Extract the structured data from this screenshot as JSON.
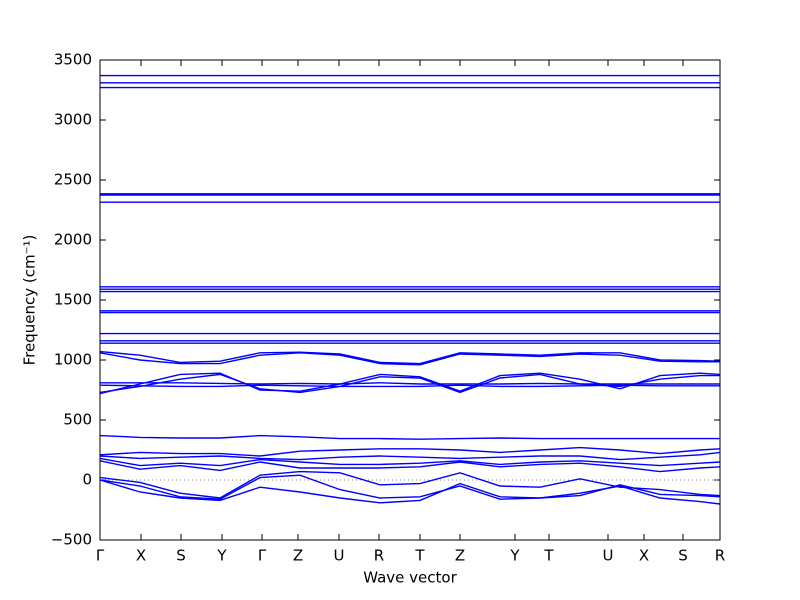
{
  "chart_data": {
    "type": "line",
    "xlabel": "Wave vector",
    "ylabel": "Frequency (cm⁻¹)",
    "color": "#0000ff",
    "x": [
      0,
      0.4,
      0.8,
      1.2,
      1.6,
      2.0,
      2.4,
      2.8,
      3.2,
      3.6,
      4.0,
      4.4,
      4.8,
      5.2,
      5.6,
      6.0,
      6.2
    ],
    "xlim": [
      0,
      6.2
    ],
    "xticks": [
      {
        "value": 0,
        "label": "Γ"
      },
      {
        "value": 0.41,
        "label": "X"
      },
      {
        "value": 0.81,
        "label": "S"
      },
      {
        "value": 1.22,
        "label": "Y"
      },
      {
        "value": 1.62,
        "label": "Γ"
      },
      {
        "value": 1.98,
        "label": "Z"
      },
      {
        "value": 2.39,
        "label": "U"
      },
      {
        "value": 2.79,
        "label": "R"
      },
      {
        "value": 3.2,
        "label": "T"
      },
      {
        "value": 3.6,
        "label": "Z"
      },
      {
        "value": 4.15,
        "label": "Y"
      },
      {
        "value": 4.49,
        "label": "T"
      },
      {
        "value": 5.08,
        "label": "U"
      },
      {
        "value": 5.44,
        "label": "X"
      },
      {
        "value": 5.83,
        "label": "S"
      },
      {
        "value": 6.2,
        "label": "R"
      }
    ],
    "ylim": [
      -500,
      3500
    ],
    "yticks": [
      {
        "value": -500,
        "label": "−500"
      },
      0,
      500,
      1000,
      1500,
      2000,
      2500,
      3000,
      3500
    ],
    "series": [
      {
        "values": [
          3370,
          3370,
          3370,
          3370,
          3370,
          3370,
          3370,
          3370,
          3370,
          3370,
          3370,
          3370,
          3370,
          3370,
          3370,
          3370,
          3370
        ]
      },
      {
        "values": [
          3310,
          3310,
          3310,
          3310,
          3310,
          3310,
          3310,
          3310,
          3310,
          3310,
          3310,
          3310,
          3310,
          3310,
          3310,
          3310,
          3310
        ]
      },
      {
        "values": [
          3270,
          3270,
          3270,
          3270,
          3270,
          3270,
          3270,
          3270,
          3270,
          3270,
          3270,
          3270,
          3270,
          3270,
          3270,
          3270,
          3270
        ]
      },
      {
        "values": [
          2385,
          2385,
          2385,
          2385,
          2385,
          2385,
          2385,
          2385,
          2385,
          2385,
          2385,
          2385,
          2385,
          2385,
          2385,
          2385,
          2385
        ]
      },
      {
        "values": [
          2375,
          2375,
          2375,
          2375,
          2375,
          2375,
          2375,
          2375,
          2375,
          2375,
          2375,
          2375,
          2375,
          2375,
          2375,
          2375,
          2375
        ]
      },
      {
        "values": [
          2315,
          2315,
          2315,
          2315,
          2315,
          2315,
          2315,
          2315,
          2315,
          2315,
          2315,
          2315,
          2315,
          2315,
          2315,
          2315,
          2315
        ]
      },
      {
        "values": [
          1610,
          1610,
          1610,
          1610,
          1610,
          1610,
          1610,
          1610,
          1610,
          1610,
          1610,
          1610,
          1610,
          1610,
          1610,
          1610,
          1610
        ]
      },
      {
        "values": [
          1590,
          1590,
          1590,
          1590,
          1590,
          1590,
          1590,
          1590,
          1590,
          1590,
          1590,
          1590,
          1590,
          1590,
          1590,
          1590,
          1590
        ]
      },
      {
        "values": [
          1570,
          1570,
          1570,
          1570,
          1570,
          1570,
          1570,
          1570,
          1570,
          1570,
          1570,
          1570,
          1570,
          1570,
          1570,
          1570,
          1570
        ]
      },
      {
        "values": [
          1410,
          1410,
          1410,
          1410,
          1410,
          1410,
          1410,
          1410,
          1410,
          1410,
          1410,
          1410,
          1410,
          1410,
          1410,
          1410,
          1410
        ]
      },
      {
        "values": [
          1395,
          1395,
          1395,
          1395,
          1395,
          1395,
          1395,
          1395,
          1395,
          1395,
          1395,
          1395,
          1395,
          1395,
          1395,
          1395,
          1395
        ]
      },
      {
        "values": [
          1220,
          1220,
          1220,
          1220,
          1220,
          1220,
          1220,
          1220,
          1220,
          1220,
          1220,
          1220,
          1220,
          1220,
          1220,
          1220,
          1220
        ]
      },
      {
        "values": [
          1160,
          1160,
          1160,
          1160,
          1160,
          1160,
          1160,
          1160,
          1160,
          1160,
          1160,
          1160,
          1160,
          1160,
          1160,
          1160,
          1160
        ]
      },
      {
        "values": [
          1140,
          1140,
          1140,
          1140,
          1140,
          1140,
          1140,
          1140,
          1140,
          1140,
          1140,
          1140,
          1140,
          1140,
          1140,
          1140,
          1140
        ]
      },
      {
        "values": [
          1070,
          1040,
          980,
          990,
          1060,
          1065,
          1050,
          980,
          970,
          1060,
          1050,
          1040,
          1060,
          1060,
          1000,
          995,
          990
        ]
      },
      {
        "values": [
          1060,
          1000,
          970,
          970,
          1040,
          1060,
          1040,
          970,
          960,
          1050,
          1040,
          1030,
          1050,
          1040,
          990,
          985,
          985
        ]
      },
      {
        "values": [
          720,
          800,
          880,
          890,
          750,
          740,
          800,
          880,
          860,
          740,
          870,
          890,
          840,
          760,
          870,
          890,
          880
        ]
      },
      {
        "values": [
          730,
          780,
          840,
          880,
          760,
          730,
          780,
          860,
          850,
          730,
          850,
          880,
          800,
          780,
          840,
          870,
          870
        ]
      },
      {
        "values": [
          810,
          810,
          810,
          805,
          800,
          805,
          800,
          810,
          800,
          800,
          800,
          805,
          800,
          800,
          800,
          800,
          800
        ]
      },
      {
        "values": [
          790,
          785,
          780,
          780,
          790,
          785,
          780,
          780,
          780,
          790,
          780,
          780,
          785,
          790,
          785,
          785,
          785
        ]
      },
      {
        "values": [
          370,
          355,
          350,
          350,
          370,
          360,
          345,
          345,
          340,
          345,
          350,
          345,
          345,
          345,
          345,
          345,
          345
        ]
      },
      {
        "values": [
          210,
          230,
          220,
          220,
          200,
          240,
          250,
          260,
          260,
          250,
          230,
          250,
          270,
          250,
          220,
          250,
          260
        ]
      },
      {
        "values": [
          200,
          180,
          190,
          200,
          180,
          170,
          190,
          200,
          190,
          180,
          190,
          200,
          200,
          170,
          190,
          210,
          230
        ]
      },
      {
        "values": [
          180,
          120,
          140,
          120,
          170,
          150,
          130,
          130,
          140,
          160,
          130,
          150,
          160,
          140,
          120,
          140,
          150
        ]
      },
      {
        "values": [
          160,
          90,
          120,
          80,
          150,
          100,
          100,
          100,
          110,
          150,
          110,
          130,
          140,
          110,
          70,
          100,
          110
        ]
      },
      {
        "values": [
          20,
          -20,
          -110,
          -150,
          40,
          70,
          60,
          -40,
          -30,
          60,
          -50,
          -60,
          10,
          -60,
          -80,
          -120,
          -130
        ]
      },
      {
        "values": [
          0,
          -50,
          -140,
          -160,
          20,
          40,
          -80,
          -150,
          -140,
          -50,
          -160,
          -150,
          -130,
          -40,
          -120,
          -130,
          -140
        ]
      },
      {
        "values": [
          0,
          -100,
          -150,
          -170,
          -60,
          -100,
          -150,
          -190,
          -170,
          -30,
          -140,
          -150,
          -110,
          -50,
          -150,
          -180,
          -200
        ]
      }
    ]
  }
}
